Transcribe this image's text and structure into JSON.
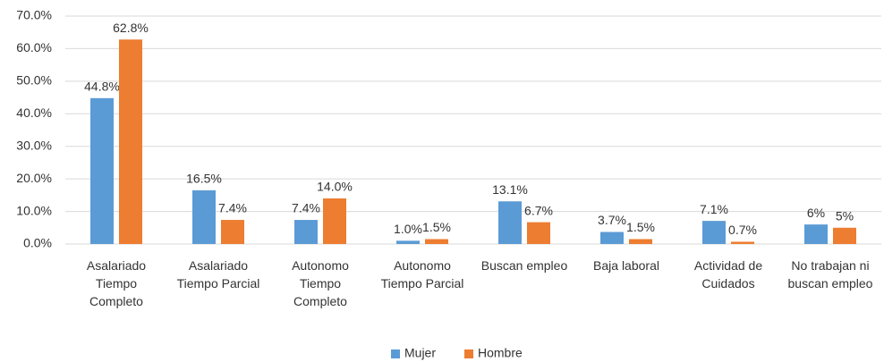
{
  "chart_data": {
    "type": "bar",
    "categories": [
      "Asalariado\nTiempo\nCompleto",
      "Asalariado\nTiempo Parcial",
      "Autonomo\nTiempo\nCompleto",
      "Autonomo\nTiempo Parcial",
      "Buscan empleo",
      "Baja laboral",
      "Actividad de\nCuidados",
      "No trabajan ni\nbuscan empleo"
    ],
    "series": [
      {
        "name": "Mujer",
        "color": "#5b9bd5",
        "values": [
          44.8,
          16.5,
          7.4,
          1.0,
          13.1,
          3.7,
          7.1,
          6
        ],
        "value_labels": [
          "44.8%",
          "16.5%",
          "7.4%",
          "1.0%",
          "13.1%",
          "3.7%",
          "7.1%",
          "6%"
        ]
      },
      {
        "name": "Hombre",
        "color": "#ed7d31",
        "values": [
          62.8,
          7.4,
          14.0,
          1.5,
          6.7,
          1.5,
          0.7,
          5
        ],
        "value_labels": [
          "62.8%",
          "7.4%",
          "14.0%",
          "1.5%",
          "6.7%",
          "1.5%",
          "0.7%",
          "5%"
        ]
      }
    ],
    "ylim": [
      0,
      70
    ],
    "yticks": [
      {
        "value": 0,
        "label": "0.0%"
      },
      {
        "value": 10,
        "label": "10.0%"
      },
      {
        "value": 20,
        "label": "20.0%"
      },
      {
        "value": 30,
        "label": "30.0%"
      },
      {
        "value": 40,
        "label": "40.0%"
      },
      {
        "value": 50,
        "label": "50.0%"
      },
      {
        "value": 60,
        "label": "60.0%"
      },
      {
        "value": 70,
        "label": "70.0%"
      }
    ],
    "grid": true,
    "legend": "bottom"
  }
}
